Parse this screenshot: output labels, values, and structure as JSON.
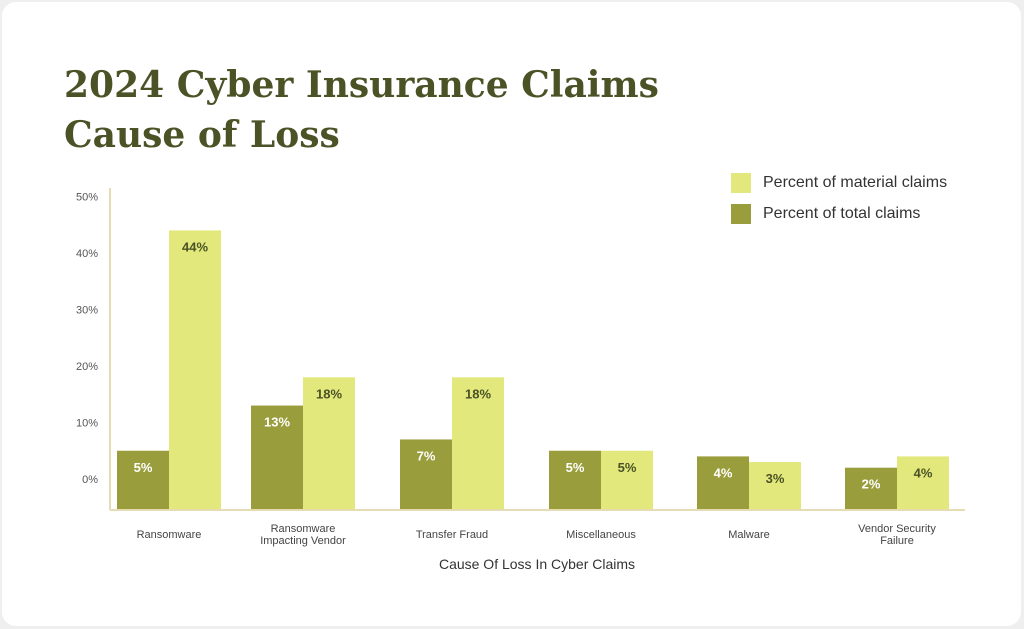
{
  "chart_data": {
    "type": "bar",
    "title_lines": [
      "2024 Cyber Insurance Claims",
      "Cause of Loss"
    ],
    "xlabel": "Cause Of Loss In Cyber Claims",
    "ylabel": "",
    "ylim": [
      0,
      50
    ],
    "yticks": [
      0,
      10,
      20,
      30,
      40,
      50
    ],
    "ytick_labels": [
      "0%",
      "10%",
      "20%",
      "30%",
      "40%",
      "50%"
    ],
    "grid": false,
    "legend_position": "top-right",
    "categories": [
      [
        "Ransomware"
      ],
      [
        "Ransomware",
        "Impacting Vendor"
      ],
      [
        "Transfer Fraud"
      ],
      [
        "Miscellaneous"
      ],
      [
        "Malware"
      ],
      [
        "Vendor Security",
        "Failure"
      ]
    ],
    "series": [
      {
        "name": "Percent of total claims",
        "color": "#9a9d3c",
        "label_color": "#ffffff",
        "values": [
          5,
          13,
          7,
          5,
          4,
          2
        ],
        "labels": [
          "5%",
          "13%",
          "7%",
          "5%",
          "4%",
          "2%"
        ]
      },
      {
        "name": "Percent of material claims",
        "color": "#e2e87c",
        "label_color": "#4a5226",
        "values": [
          44,
          18,
          18,
          5,
          3,
          4
        ],
        "labels": [
          "44%",
          "18%",
          "18%",
          "5%",
          "3%",
          "4%"
        ]
      }
    ]
  }
}
